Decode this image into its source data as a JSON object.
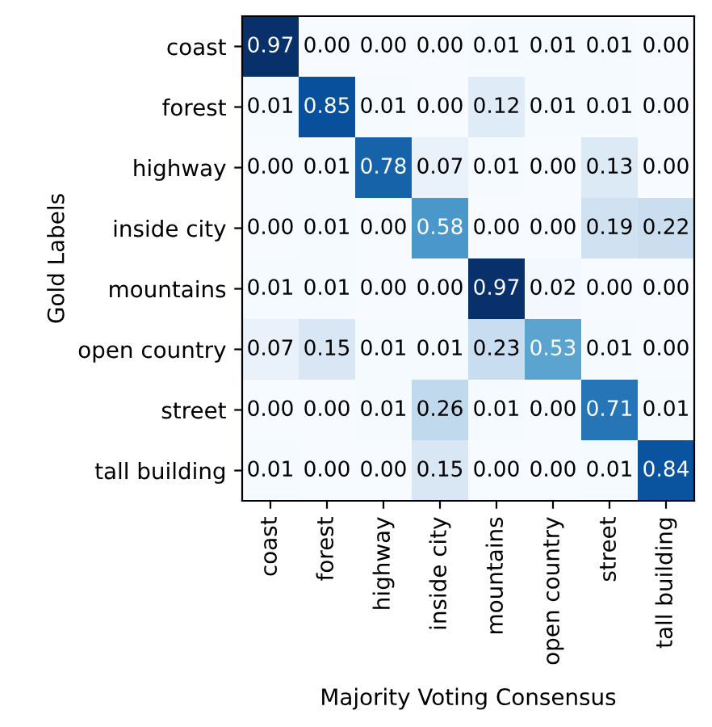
{
  "chart_data": {
    "type": "heatmap",
    "xlabel": "Majority Voting Consensus",
    "ylabel": "Gold Labels",
    "categories": [
      "coast",
      "forest",
      "highway",
      "inside city",
      "mountains",
      "open country",
      "street",
      "tall building"
    ],
    "y_categories": [
      "coast",
      "forest",
      "highway",
      "inside city",
      "mountains",
      "open country",
      "street",
      "tall building"
    ],
    "cells": [
      [
        0.97,
        0.0,
        0.0,
        0.0,
        0.01,
        0.01,
        0.01,
        0.0
      ],
      [
        0.01,
        0.85,
        0.01,
        0.0,
        0.12,
        0.01,
        0.01,
        0.0
      ],
      [
        0.0,
        0.01,
        0.78,
        0.07,
        0.01,
        0.0,
        0.13,
        0.0
      ],
      [
        0.0,
        0.01,
        0.0,
        0.58,
        0.0,
        0.0,
        0.19,
        0.22
      ],
      [
        0.01,
        0.01,
        0.0,
        0.0,
        0.97,
        0.02,
        0.0,
        0.0
      ],
      [
        0.07,
        0.15,
        0.01,
        0.01,
        0.23,
        0.53,
        0.01,
        0.0
      ],
      [
        0.0,
        0.0,
        0.01,
        0.26,
        0.01,
        0.0,
        0.71,
        0.01
      ],
      [
        0.01,
        0.0,
        0.0,
        0.15,
        0.0,
        0.0,
        0.01,
        0.84
      ]
    ],
    "cell_labels": [
      [
        "0.97",
        "0.00",
        "0.00",
        "0.00",
        "0.01",
        "0.01",
        "0.01",
        "0.00"
      ],
      [
        "0.01",
        "0.85",
        "0.01",
        "0.00",
        "0.12",
        "0.01",
        "0.01",
        "0.00"
      ],
      [
        "0.00",
        "0.01",
        "0.78",
        "0.07",
        "0.01",
        "0.00",
        "0.13",
        "0.00"
      ],
      [
        "0.00",
        "0.01",
        "0.00",
        "0.58",
        "0.00",
        "0.00",
        "0.19",
        "0.22"
      ],
      [
        "0.01",
        "0.01",
        "0.00",
        "0.00",
        "0.97",
        "0.02",
        "0.00",
        "0.00"
      ],
      [
        "0.07",
        "0.15",
        "0.01",
        "0.01",
        "0.23",
        "0.53",
        "0.01",
        "0.00"
      ],
      [
        "0.00",
        "0.00",
        "0.01",
        "0.26",
        "0.01",
        "0.00",
        "0.71",
        "0.01"
      ],
      [
        "0.01",
        "0.00",
        "0.00",
        "0.15",
        "0.00",
        "0.00",
        "0.01",
        "0.84"
      ]
    ]
  }
}
